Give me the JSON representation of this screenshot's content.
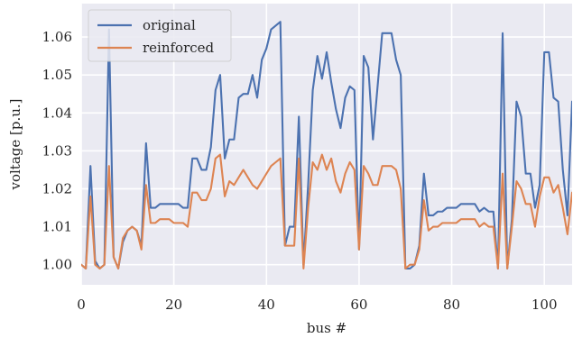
{
  "chart_data": {
    "type": "line",
    "title": "",
    "xlabel": "bus #",
    "ylabel": "voltage [p.u.]",
    "xlim": [
      0,
      106
    ],
    "ylim": [
      0.9947,
      1.0688
    ],
    "xticks": [
      0,
      20,
      40,
      60,
      80,
      100
    ],
    "yticks": [
      1.0,
      1.01,
      1.02,
      1.03,
      1.04,
      1.05,
      1.06
    ],
    "ytick_labels": [
      "1.00",
      "1.01",
      "1.02",
      "1.03",
      "1.04",
      "1.05",
      "1.06"
    ],
    "grid": true,
    "legend_position": "top-left",
    "series": [
      {
        "name": "original",
        "color": "#4c72b0",
        "x": [
          0,
          1,
          2,
          3,
          4,
          5,
          6,
          7,
          8,
          9,
          10,
          11,
          12,
          13,
          14,
          15,
          16,
          17,
          18,
          19,
          20,
          21,
          22,
          23,
          24,
          25,
          26,
          27,
          28,
          29,
          30,
          31,
          32,
          33,
          34,
          35,
          36,
          37,
          38,
          39,
          40,
          41,
          42,
          43,
          44,
          45,
          46,
          47,
          48,
          49,
          50,
          51,
          52,
          53,
          54,
          55,
          56,
          57,
          58,
          59,
          60,
          61,
          62,
          63,
          64,
          65,
          66,
          67,
          68,
          69,
          70,
          71,
          72,
          73,
          74,
          75,
          76,
          77,
          78,
          79,
          80,
          81,
          82,
          83,
          84,
          85,
          86,
          87,
          88,
          89,
          90,
          91,
          92,
          93,
          94,
          95,
          96,
          97,
          98,
          99,
          100,
          101,
          102,
          103,
          104,
          105,
          106
        ],
        "y": [
          1.0,
          0.999,
          1.026,
          1.001,
          0.999,
          1.0,
          1.062,
          1.002,
          0.999,
          1.006,
          1.009,
          1.01,
          1.009,
          1.005,
          1.032,
          1.015,
          1.015,
          1.016,
          1.016,
          1.016,
          1.016,
          1.016,
          1.015,
          1.015,
          1.028,
          1.028,
          1.025,
          1.025,
          1.031,
          1.046,
          1.05,
          1.028,
          1.033,
          1.033,
          1.044,
          1.045,
          1.045,
          1.05,
          1.044,
          1.054,
          1.057,
          1.062,
          1.063,
          1.064,
          1.005,
          1.01,
          1.01,
          1.039,
          1.0,
          1.021,
          1.046,
          1.055,
          1.049,
          1.056,
          1.048,
          1.041,
          1.036,
          1.044,
          1.047,
          1.046,
          1.004,
          1.055,
          1.052,
          1.033,
          1.047,
          1.061,
          1.061,
          1.061,
          1.054,
          1.05,
          0.999,
          0.999,
          1.0,
          1.005,
          1.024,
          1.013,
          1.013,
          1.014,
          1.014,
          1.015,
          1.015,
          1.015,
          1.016,
          1.016,
          1.016,
          1.016,
          1.014,
          1.015,
          1.014,
          1.014,
          0.999,
          1.061,
          0.999,
          1.012,
          1.043,
          1.039,
          1.024,
          1.024,
          1.015,
          1.021,
          1.056,
          1.056,
          1.044,
          1.043,
          1.025,
          1.013,
          1.043
        ]
      },
      {
        "name": "reinforced",
        "color": "#dd8452",
        "x": [
          0,
          1,
          2,
          3,
          4,
          5,
          6,
          7,
          8,
          9,
          10,
          11,
          12,
          13,
          14,
          15,
          16,
          17,
          18,
          19,
          20,
          21,
          22,
          23,
          24,
          25,
          26,
          27,
          28,
          29,
          30,
          31,
          32,
          33,
          34,
          35,
          36,
          37,
          38,
          39,
          40,
          41,
          42,
          43,
          44,
          45,
          46,
          47,
          48,
          49,
          50,
          51,
          52,
          53,
          54,
          55,
          56,
          57,
          58,
          59,
          60,
          61,
          62,
          63,
          64,
          65,
          66,
          67,
          68,
          69,
          70,
          71,
          72,
          73,
          74,
          75,
          76,
          77,
          78,
          79,
          80,
          81,
          82,
          83,
          84,
          85,
          86,
          87,
          88,
          89,
          90,
          91,
          92,
          93,
          94,
          95,
          96,
          97,
          98,
          99,
          100,
          101,
          102,
          103,
          104,
          105,
          106
        ],
        "y": [
          1.0,
          0.999,
          1.018,
          1.0,
          0.999,
          1.0,
          1.026,
          1.002,
          0.999,
          1.007,
          1.009,
          1.01,
          1.009,
          1.004,
          1.021,
          1.011,
          1.011,
          1.012,
          1.012,
          1.012,
          1.011,
          1.011,
          1.011,
          1.01,
          1.019,
          1.019,
          1.017,
          1.017,
          1.02,
          1.028,
          1.029,
          1.018,
          1.022,
          1.021,
          1.023,
          1.025,
          1.023,
          1.021,
          1.02,
          1.022,
          1.024,
          1.026,
          1.027,
          1.028,
          1.005,
          1.005,
          1.005,
          1.028,
          0.999,
          1.015,
          1.027,
          1.025,
          1.029,
          1.025,
          1.028,
          1.022,
          1.019,
          1.024,
          1.027,
          1.025,
          1.004,
          1.026,
          1.024,
          1.021,
          1.021,
          1.026,
          1.026,
          1.026,
          1.025,
          1.02,
          0.999,
          1.0,
          1.0,
          1.004,
          1.017,
          1.009,
          1.01,
          1.01,
          1.011,
          1.011,
          1.011,
          1.011,
          1.012,
          1.012,
          1.012,
          1.012,
          1.01,
          1.011,
          1.01,
          1.01,
          0.999,
          1.024,
          0.999,
          1.01,
          1.022,
          1.02,
          1.016,
          1.016,
          1.01,
          1.018,
          1.023,
          1.023,
          1.019,
          1.021,
          1.015,
          1.008,
          1.019
        ]
      }
    ]
  }
}
